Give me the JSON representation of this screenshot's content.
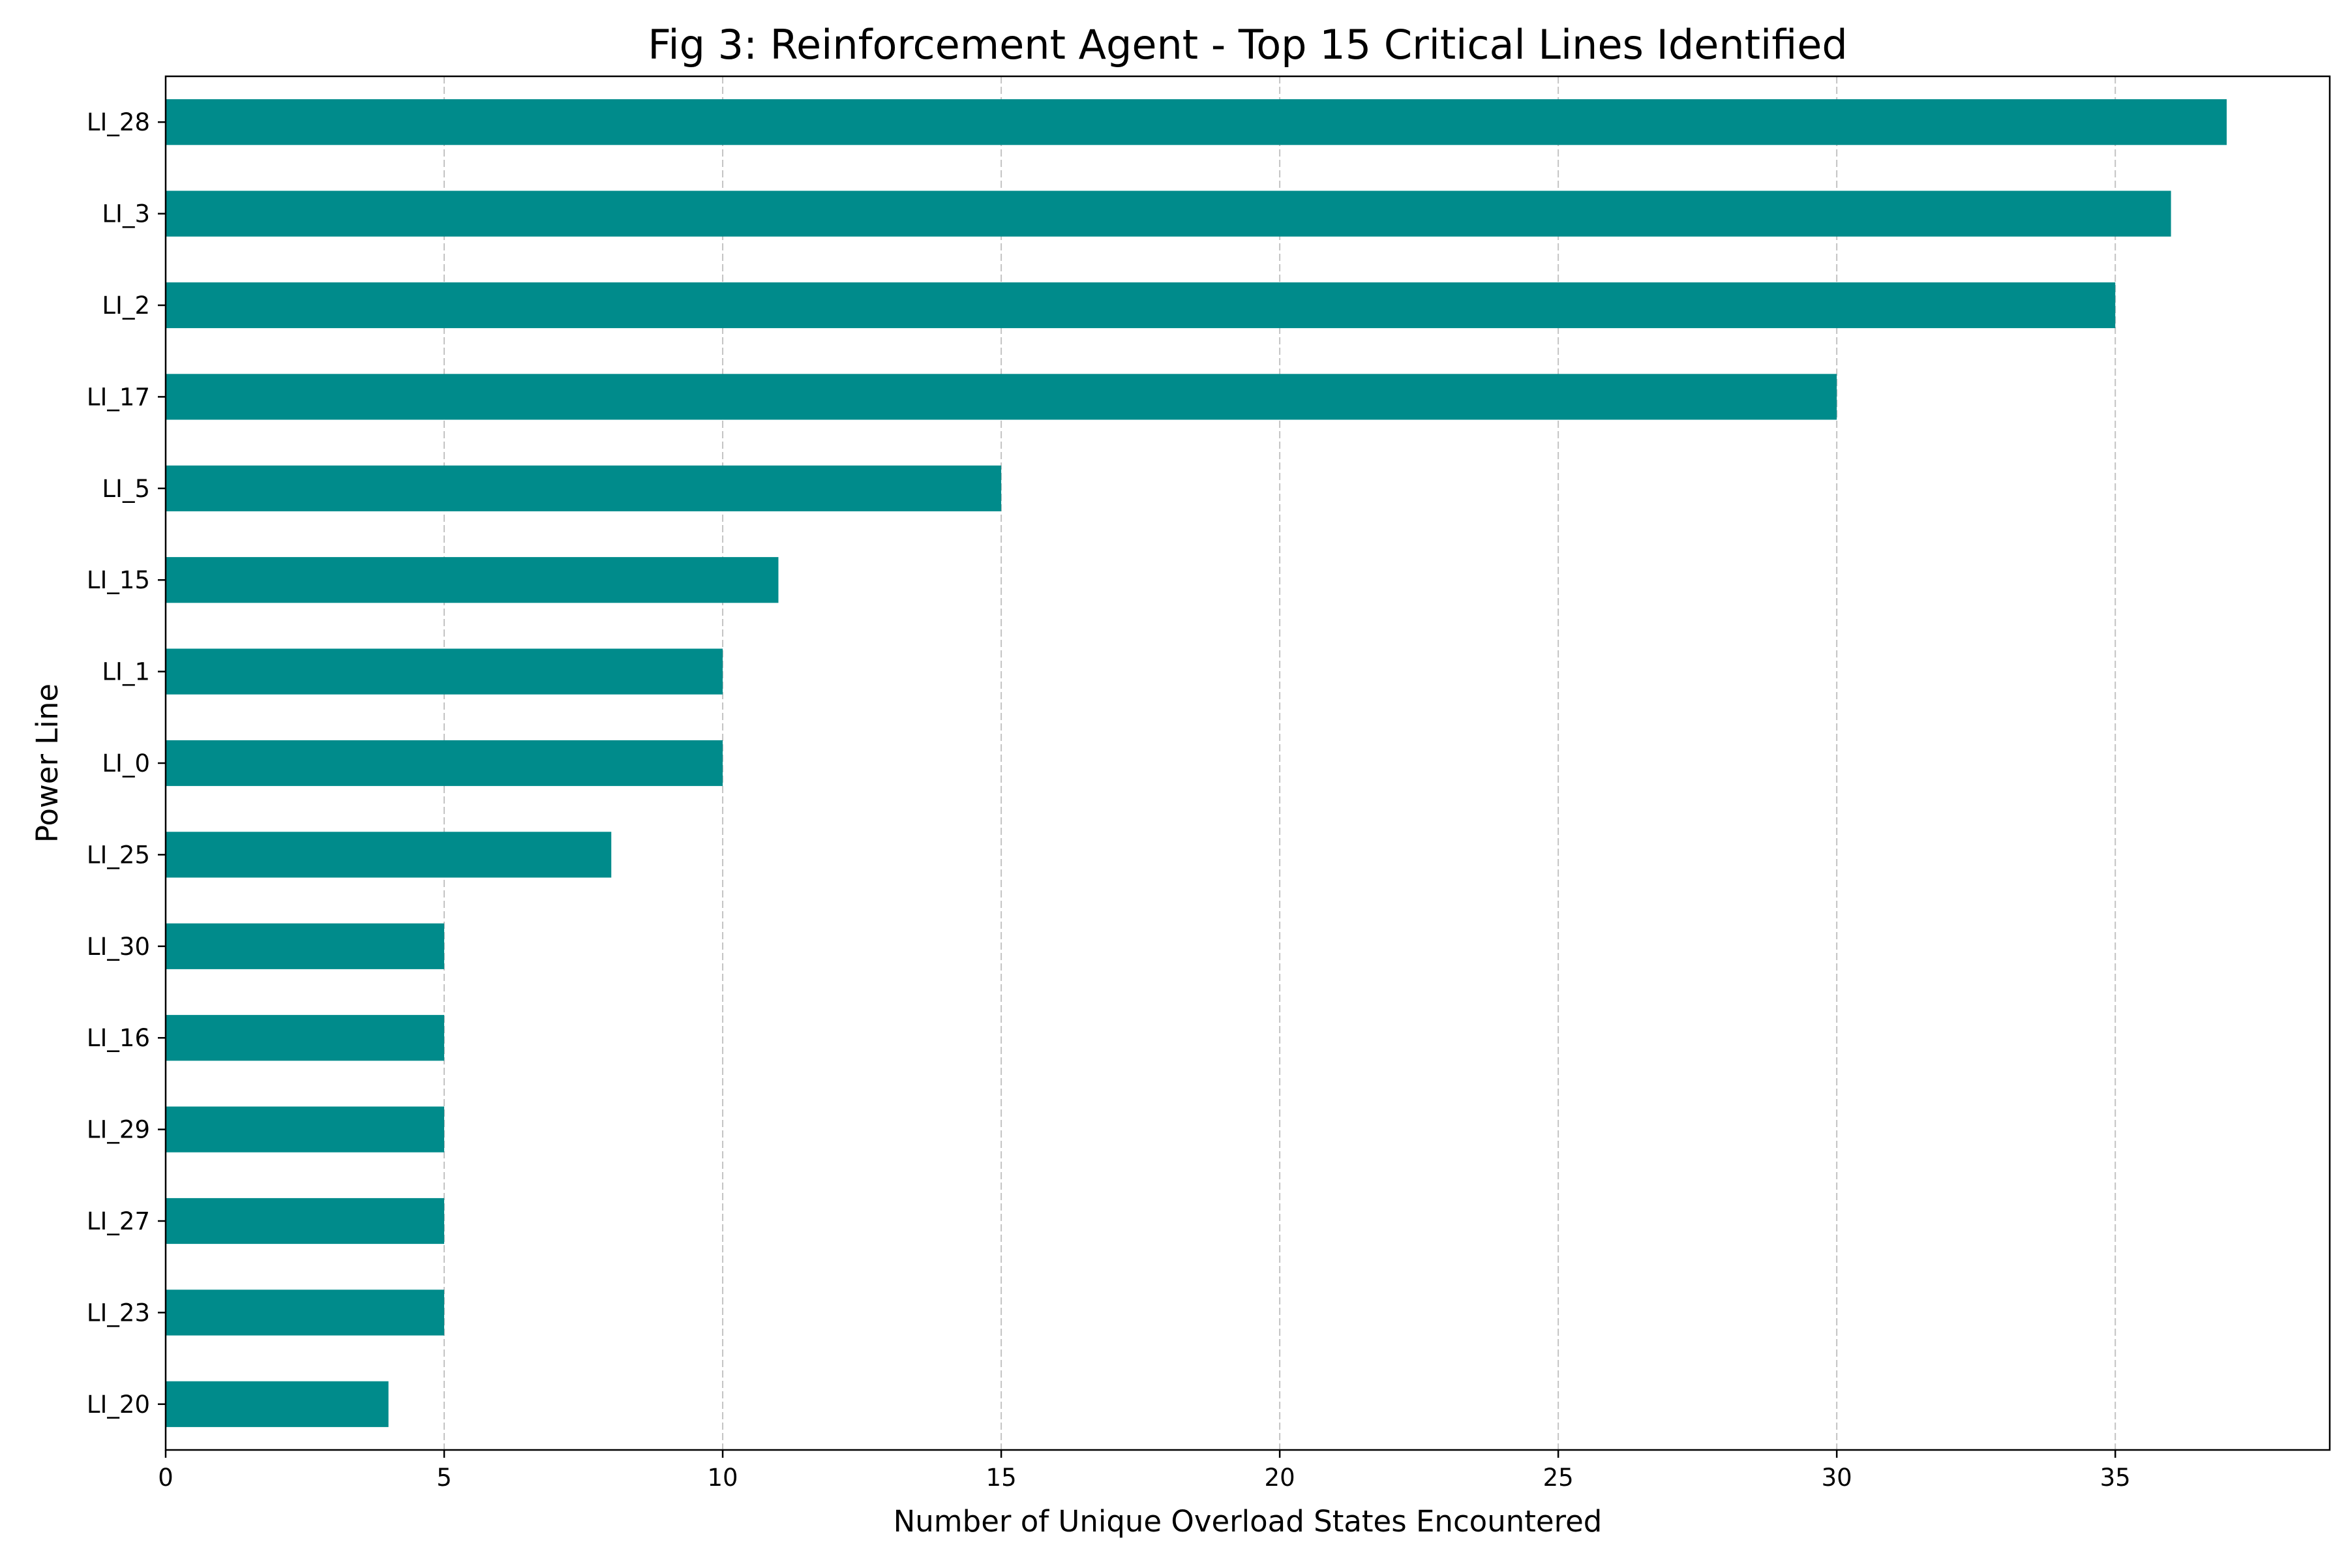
{
  "chart_data": {
    "type": "bar",
    "orientation": "horizontal",
    "title": "Fig 3: Reinforcement Agent - Top 15 Critical Lines Identified",
    "xlabel": "Number of Unique Overload States Encountered",
    "ylabel": "Power Line",
    "categories": [
      "LI_28",
      "LI_3",
      "LI_2",
      "LI_17",
      "LI_5",
      "LI_15",
      "LI_1",
      "LI_0",
      "LI_25",
      "LI_30",
      "LI_16",
      "LI_29",
      "LI_27",
      "LI_23",
      "LI_20"
    ],
    "values": [
      37,
      36,
      35,
      30,
      15,
      11,
      10,
      10,
      8,
      5,
      5,
      5,
      5,
      5,
      4
    ],
    "xlim": [
      0,
      38.85
    ],
    "xticks": [
      0,
      5,
      10,
      15,
      20,
      25,
      30,
      35
    ],
    "grid": "x-dashed",
    "bar_color": "#008b8b"
  }
}
